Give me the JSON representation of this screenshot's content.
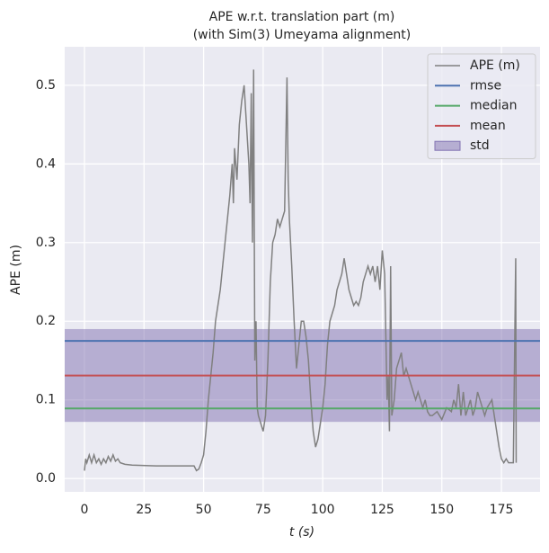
{
  "chart_data": {
    "type": "line",
    "title": "APE w.r.t. translation part (m)",
    "subtitle": "(with Sim(3) Umeyama alignment)",
    "xlabel": "t (s)",
    "ylabel": "APE (m)",
    "xlim": [
      -8.3,
      191.2
    ],
    "xticks": [
      0,
      25,
      50,
      75,
      100,
      125,
      150,
      175
    ],
    "ylim": [
      -0.017,
      0.549
    ],
    "yticks": [
      {
        "value": 0,
        "label": "0.0"
      },
      0.1,
      0.2,
      0.3,
      0.4,
      0.5
    ],
    "grid": true,
    "legend": "upper right",
    "x": [
      0,
      0.5,
      1,
      2,
      3,
      4,
      5,
      6,
      7,
      8,
      9,
      10,
      11,
      12,
      13,
      14,
      15,
      17,
      20,
      30,
      40,
      46,
      47,
      48,
      49,
      50,
      51,
      52,
      53,
      54,
      55,
      56,
      57,
      58,
      59,
      60,
      61,
      62,
      62.5,
      63,
      64,
      65,
      66,
      67,
      68,
      69,
      69.5,
      70,
      70.5,
      71,
      71.5,
      72,
      72.5,
      73,
      74,
      75,
      76,
      77,
      78,
      79,
      80,
      81,
      82,
      83,
      84,
      85,
      85.5,
      86,
      87,
      88,
      89,
      90,
      91,
      92,
      93,
      94,
      95,
      96,
      97,
      98,
      99,
      100,
      101,
      102,
      103,
      104,
      105,
      106,
      107,
      108,
      109,
      110,
      111,
      112,
      113,
      114,
      115,
      116,
      117,
      118,
      119,
      120,
      121,
      122,
      123,
      124,
      125,
      126,
      127,
      127.5,
      128,
      128.5,
      129,
      130,
      131,
      132,
      133,
      134,
      135,
      136,
      137,
      138,
      139,
      140,
      141,
      142,
      143,
      144,
      145,
      146,
      148,
      150,
      152,
      154,
      155,
      156,
      157,
      158,
      159,
      160,
      161,
      162,
      163,
      164,
      165,
      166,
      167,
      168,
      169,
      170,
      171,
      172,
      173,
      174,
      175,
      176,
      177,
      178,
      179,
      180,
      181,
      181.2
    ],
    "series": [
      {
        "name": "APE (m)",
        "color": "#808080",
        "values": [
          0.01,
          0.025,
          0.02,
          0.03,
          0.02,
          0.03,
          0.02,
          0.025,
          0.018,
          0.025,
          0.02,
          0.028,
          0.022,
          0.03,
          0.022,
          0.025,
          0.02,
          0.018,
          0.017,
          0.016,
          0.016,
          0.016,
          0.01,
          0.012,
          0.02,
          0.03,
          0.06,
          0.1,
          0.13,
          0.16,
          0.2,
          0.22,
          0.24,
          0.27,
          0.3,
          0.33,
          0.36,
          0.4,
          0.35,
          0.42,
          0.38,
          0.45,
          0.48,
          0.5,
          0.45,
          0.4,
          0.35,
          0.49,
          0.3,
          0.52,
          0.15,
          0.2,
          0.09,
          0.08,
          0.07,
          0.06,
          0.08,
          0.15,
          0.25,
          0.3,
          0.31,
          0.33,
          0.32,
          0.33,
          0.34,
          0.51,
          0.38,
          0.33,
          0.27,
          0.2,
          0.14,
          0.17,
          0.2,
          0.2,
          0.18,
          0.15,
          0.1,
          0.06,
          0.04,
          0.05,
          0.07,
          0.09,
          0.12,
          0.17,
          0.2,
          0.21,
          0.22,
          0.24,
          0.25,
          0.26,
          0.28,
          0.26,
          0.24,
          0.23,
          0.22,
          0.225,
          0.22,
          0.23,
          0.25,
          0.26,
          0.27,
          0.26,
          0.27,
          0.25,
          0.27,
          0.24,
          0.29,
          0.26,
          0.1,
          0.13,
          0.06,
          0.27,
          0.08,
          0.1,
          0.14,
          0.15,
          0.16,
          0.13,
          0.14,
          0.13,
          0.12,
          0.11,
          0.1,
          0.11,
          0.1,
          0.09,
          0.1,
          0.085,
          0.08,
          0.08,
          0.085,
          0.075,
          0.09,
          0.085,
          0.1,
          0.09,
          0.12,
          0.08,
          0.11,
          0.08,
          0.09,
          0.1,
          0.08,
          0.09,
          0.11,
          0.1,
          0.09,
          0.08,
          0.09,
          0.095,
          0.1,
          0.08,
          0.06,
          0.04,
          0.025,
          0.02,
          0.025,
          0.02,
          0.02,
          0.02,
          0.28,
          0.02
        ]
      }
    ],
    "stats": [
      {
        "name": "rmse",
        "color": "#4c72b0",
        "value": 0.175
      },
      {
        "name": "median",
        "color": "#55a868",
        "value": 0.089
      },
      {
        "name": "mean",
        "color": "#c44e52",
        "value": 0.131
      }
    ],
    "std": {
      "name": "std",
      "color": "#8172b2",
      "value": 0.059
    }
  }
}
